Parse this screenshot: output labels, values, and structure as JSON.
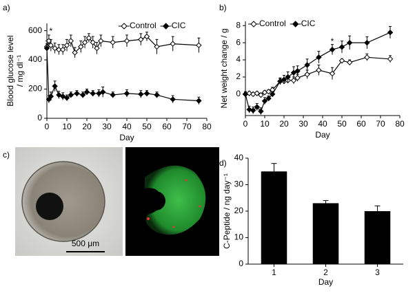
{
  "chart_data": [
    {
      "type": "line",
      "panel": "a)",
      "x_label": "Day",
      "y_label": "Blood glucose level",
      "y_unit": "/ mg dl⁻¹",
      "xlim": [
        0,
        80
      ],
      "xticks": [
        0,
        10,
        20,
        30,
        40,
        50,
        60,
        70,
        80
      ],
      "ylim": [
        0,
        650
      ],
      "yticks": [
        0,
        200,
        400,
        600
      ],
      "legend": "upper right",
      "annotations": [
        {
          "text": "*",
          "x": 2,
          "y": 595
        }
      ],
      "series": [
        {
          "name": "Control",
          "color": "#000000",
          "filled": false,
          "x": [
            0,
            1,
            2,
            4,
            6,
            8,
            10,
            12,
            14,
            17,
            19,
            21,
            23,
            25,
            27,
            33,
            40,
            47,
            50,
            55,
            63,
            76
          ],
          "values": [
            490,
            530,
            500,
            480,
            470,
            470,
            500,
            530,
            450,
            490,
            520,
            550,
            520,
            480,
            530,
            520,
            530,
            540,
            560,
            490,
            510,
            500
          ],
          "errors": [
            40,
            40,
            40,
            35,
            35,
            35,
            40,
            40,
            35,
            40,
            40,
            30,
            40,
            40,
            40,
            40,
            40,
            40,
            30,
            50,
            50,
            50
          ]
        },
        {
          "name": "CIC",
          "color": "#000000",
          "filled": true,
          "x": [
            0,
            1,
            2,
            4,
            6,
            8,
            10,
            12,
            15,
            18,
            20,
            23,
            26,
            28,
            33,
            40,
            47,
            50,
            55,
            63,
            76
          ],
          "values": [
            480,
            130,
            150,
            220,
            160,
            150,
            140,
            160,
            170,
            160,
            180,
            170,
            170,
            180,
            160,
            170,
            165,
            170,
            160,
            130,
            120
          ],
          "errors": [
            30,
            25,
            30,
            35,
            25,
            25,
            20,
            20,
            20,
            20,
            20,
            20,
            25,
            35,
            20,
            25,
            25,
            20,
            20,
            25,
            25
          ]
        }
      ]
    },
    {
      "type": "line",
      "panel": "b)",
      "x_label": "Day",
      "y_label": "Net weight change / g",
      "xlim": [
        0,
        80
      ],
      "xticks": [
        0,
        10,
        20,
        30,
        40,
        50,
        60,
        70,
        80
      ],
      "ylim": [
        -2.5,
        8.5
      ],
      "yticks": [
        0,
        2,
        4,
        6,
        8
      ],
      "legend": "upper left",
      "annotations": [
        {
          "text": "*",
          "x": 45,
          "y": 6.1
        }
      ],
      "series": [
        {
          "name": "Control",
          "color": "#000000",
          "filled": false,
          "x": [
            0,
            2,
            4,
            6,
            8,
            10,
            12,
            14,
            18,
            20,
            22,
            25,
            27,
            32,
            38,
            45,
            50,
            54,
            63,
            75
          ],
          "values": [
            0,
            0.1,
            0,
            0.1,
            -0.1,
            0.2,
            0.3,
            0.5,
            1.5,
            1.5,
            1.6,
            1.6,
            1.9,
            2.3,
            2.8,
            2.4,
            3.9,
            3.7,
            4.3,
            4.1
          ],
          "errors": [
            0.2,
            0.2,
            0.2,
            0.2,
            0.2,
            0.2,
            0.2,
            0.3,
            0.3,
            0.3,
            0.3,
            0.4,
            0.4,
            0.5,
            0.6,
            0.7,
            0.2,
            0.3,
            0.4,
            0.4
          ]
        },
        {
          "name": "CIC",
          "color": "#000000",
          "filled": true,
          "x": [
            0,
            2,
            4,
            6,
            8,
            10,
            12,
            14,
            18,
            20,
            22,
            25,
            27,
            32,
            38,
            45,
            50,
            54,
            63,
            75
          ],
          "values": [
            0,
            -1.8,
            -1.9,
            -1.5,
            -2,
            -0.8,
            -0.5,
            0,
            1.5,
            1.7,
            2.0,
            2.5,
            2.7,
            3.4,
            4.3,
            5.2,
            5.5,
            6.0,
            6.0,
            7.2
          ],
          "errors": [
            0.3,
            0.4,
            0.4,
            0.4,
            0.4,
            0.4,
            0.3,
            0.3,
            0.4,
            0.5,
            0.6,
            0.7,
            0.6,
            0.7,
            0.7,
            0.6,
            0.7,
            0.8,
            0.7,
            0.7
          ]
        }
      ]
    },
    {
      "type": "bar",
      "panel": "d)",
      "x_label": "Day",
      "y_label": "C-Peptide / ng day⁻¹",
      "categories": [
        "1",
        "2",
        "3"
      ],
      "values": [
        35,
        23,
        20
      ],
      "errors": [
        3,
        1,
        2
      ],
      "color": "#000000",
      "ylim": [
        0,
        40
      ],
      "yticks": [
        0,
        10,
        20,
        30,
        40
      ]
    }
  ],
  "micrograph": {
    "panel": "c)",
    "scale_bar": "500 μm"
  }
}
